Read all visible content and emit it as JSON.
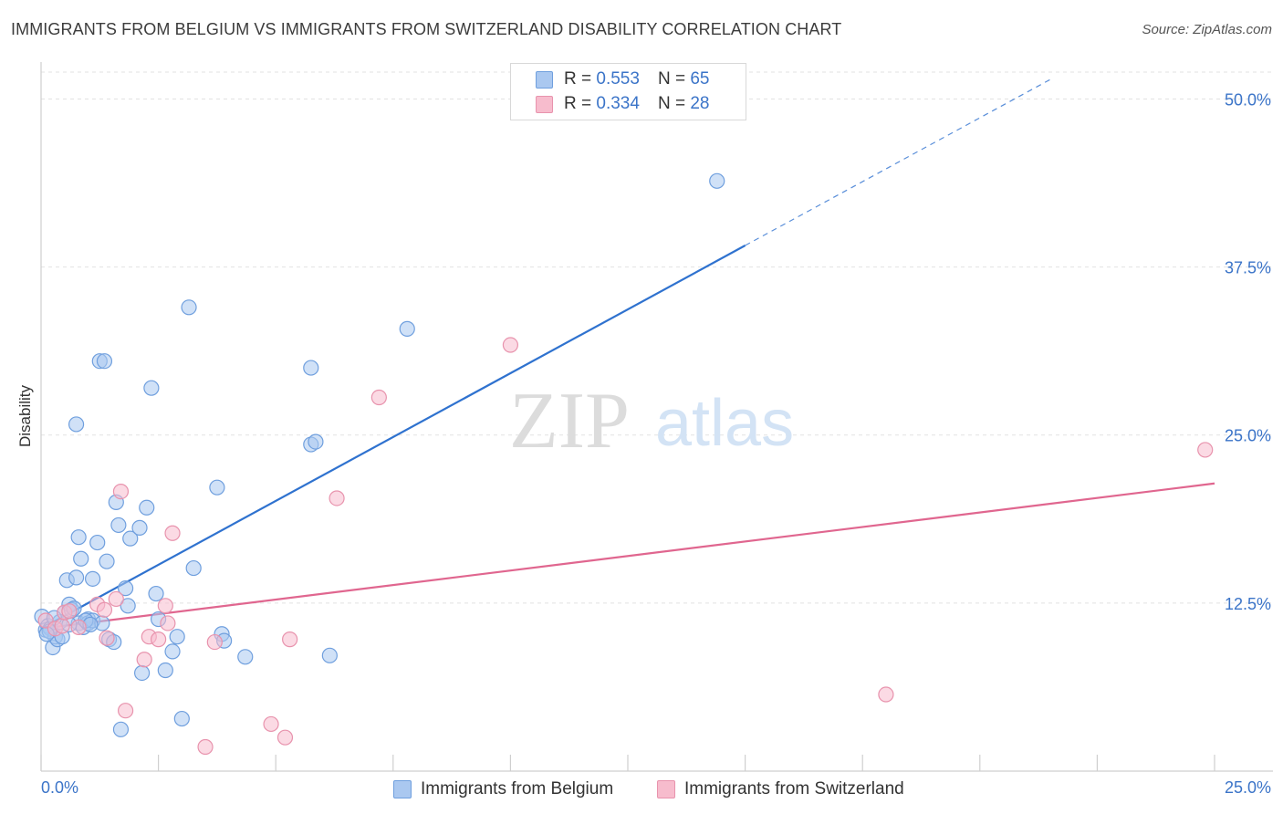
{
  "header": {
    "title": "IMMIGRANTS FROM BELGIUM VS IMMIGRANTS FROM SWITZERLAND DISABILITY CORRELATION CHART",
    "source": "Source: ZipAtlas.com"
  },
  "watermark": {
    "zip": "ZIP",
    "atlas": "atlas"
  },
  "legend_stats": [
    {
      "r_label": "R =",
      "r_value": "0.553",
      "n_label": "N =",
      "n_value": "65"
    },
    {
      "r_label": "R =",
      "r_value": "0.334",
      "n_label": "N =",
      "n_value": "28"
    }
  ],
  "colors": {
    "belgium_fill": "#aac8f0",
    "belgium_stroke": "#6f9fde",
    "belgium_line": "#2f72cf",
    "switzerland_fill": "#f7bccd",
    "switzerland_stroke": "#e893ad",
    "switzerland_line": "#e0668f",
    "tick_label": "#3b74c8",
    "grid": "#e2e2e2"
  },
  "chart_data": {
    "type": "scatter",
    "title": "IMMIGRANTS FROM BELGIUM VS IMMIGRANTS FROM SWITZERLAND DISABILITY CORRELATION CHART",
    "xlabel": "",
    "ylabel": "Disability",
    "xlim": [
      0,
      25
    ],
    "ylim": [
      0,
      52
    ],
    "x_tick_labels": [
      "0.0%",
      "25.0%"
    ],
    "y_ticks": [
      12.5,
      25.0,
      37.5,
      50.0
    ],
    "y_tick_labels": [
      "12.5%",
      "25.0%",
      "37.5%",
      "50.0%"
    ],
    "grid": true,
    "legend_position": "top-center",
    "series": [
      {
        "name": "Immigrants from Belgium",
        "r": 0.553,
        "n": 65,
        "points": [
          [
            0.02,
            11.5
          ],
          [
            0.1,
            10.5
          ],
          [
            0.15,
            10.8
          ],
          [
            0.2,
            10.6
          ],
          [
            0.25,
            9.2
          ],
          [
            0.3,
            10.0
          ],
          [
            0.35,
            9.8
          ],
          [
            0.45,
            10.0
          ],
          [
            0.5,
            11.8
          ],
          [
            0.55,
            14.2
          ],
          [
            0.6,
            12.4
          ],
          [
            0.65,
            12.0
          ],
          [
            0.7,
            12.1
          ],
          [
            0.75,
            14.4
          ],
          [
            0.8,
            11.0
          ],
          [
            0.9,
            10.7
          ],
          [
            0.75,
            25.8
          ],
          [
            0.8,
            17.4
          ],
          [
            0.85,
            15.8
          ],
          [
            1.0,
            11.3
          ],
          [
            1.0,
            11.0
          ],
          [
            1.1,
            11.2
          ],
          [
            1.1,
            14.3
          ],
          [
            1.2,
            17.0
          ],
          [
            1.25,
            30.5
          ],
          [
            1.3,
            11.0
          ],
          [
            1.35,
            30.5
          ],
          [
            1.4,
            15.6
          ],
          [
            1.45,
            9.8
          ],
          [
            1.55,
            9.6
          ],
          [
            1.6,
            20.0
          ],
          [
            1.65,
            18.3
          ],
          [
            1.7,
            3.1
          ],
          [
            1.8,
            13.6
          ],
          [
            1.85,
            12.3
          ],
          [
            1.9,
            17.3
          ],
          [
            2.1,
            18.1
          ],
          [
            2.15,
            7.3
          ],
          [
            2.25,
            19.6
          ],
          [
            2.35,
            28.5
          ],
          [
            2.45,
            13.2
          ],
          [
            2.5,
            11.3
          ],
          [
            2.65,
            7.5
          ],
          [
            2.8,
            8.9
          ],
          [
            2.9,
            10.0
          ],
          [
            3.0,
            3.9
          ],
          [
            3.15,
            34.5
          ],
          [
            3.25,
            15.1
          ],
          [
            3.75,
            21.1
          ],
          [
            3.85,
            10.2
          ],
          [
            3.9,
            9.7
          ],
          [
            4.35,
            8.5
          ],
          [
            5.75,
            30.0
          ],
          [
            5.75,
            24.3
          ],
          [
            5.85,
            24.5
          ],
          [
            6.15,
            8.6
          ],
          [
            7.8,
            32.9
          ],
          [
            14.4,
            43.9
          ],
          [
            0.18,
            10.4
          ],
          [
            0.4,
            11.1
          ],
          [
            0.95,
            11.2
          ],
          [
            1.05,
            10.9
          ],
          [
            0.12,
            10.2
          ],
          [
            0.28,
            11.4
          ],
          [
            0.6,
            10.9
          ]
        ]
      },
      {
        "name": "Immigrants from Switzerland",
        "r": 0.334,
        "n": 28,
        "points": [
          [
            0.1,
            11.2
          ],
          [
            0.3,
            10.6
          ],
          [
            0.45,
            10.8
          ],
          [
            0.5,
            11.8
          ],
          [
            0.6,
            11.9
          ],
          [
            0.8,
            10.7
          ],
          [
            1.2,
            12.4
          ],
          [
            1.35,
            12.0
          ],
          [
            1.4,
            9.9
          ],
          [
            1.6,
            12.8
          ],
          [
            1.7,
            20.8
          ],
          [
            1.8,
            4.5
          ],
          [
            2.2,
            8.3
          ],
          [
            2.3,
            10.0
          ],
          [
            2.5,
            9.8
          ],
          [
            2.65,
            12.3
          ],
          [
            2.7,
            11.0
          ],
          [
            2.8,
            17.7
          ],
          [
            3.5,
            1.8
          ],
          [
            3.7,
            9.6
          ],
          [
            4.9,
            3.5
          ],
          [
            5.2,
            2.5
          ],
          [
            5.3,
            9.8
          ],
          [
            6.3,
            20.3
          ],
          [
            7.2,
            27.8
          ],
          [
            10.0,
            31.7
          ],
          [
            18.0,
            5.7
          ],
          [
            24.8,
            23.9
          ]
        ]
      }
    ],
    "trendlines": [
      {
        "series": "Immigrants from Belgium",
        "x": [
          0,
          15.0
        ],
        "y": [
          10.6,
          39.1
        ],
        "dashed_extension_to_x": 25
      },
      {
        "series": "Immigrants from Switzerland",
        "x": [
          0,
          25
        ],
        "y": [
          10.6,
          21.4
        ]
      }
    ]
  }
}
